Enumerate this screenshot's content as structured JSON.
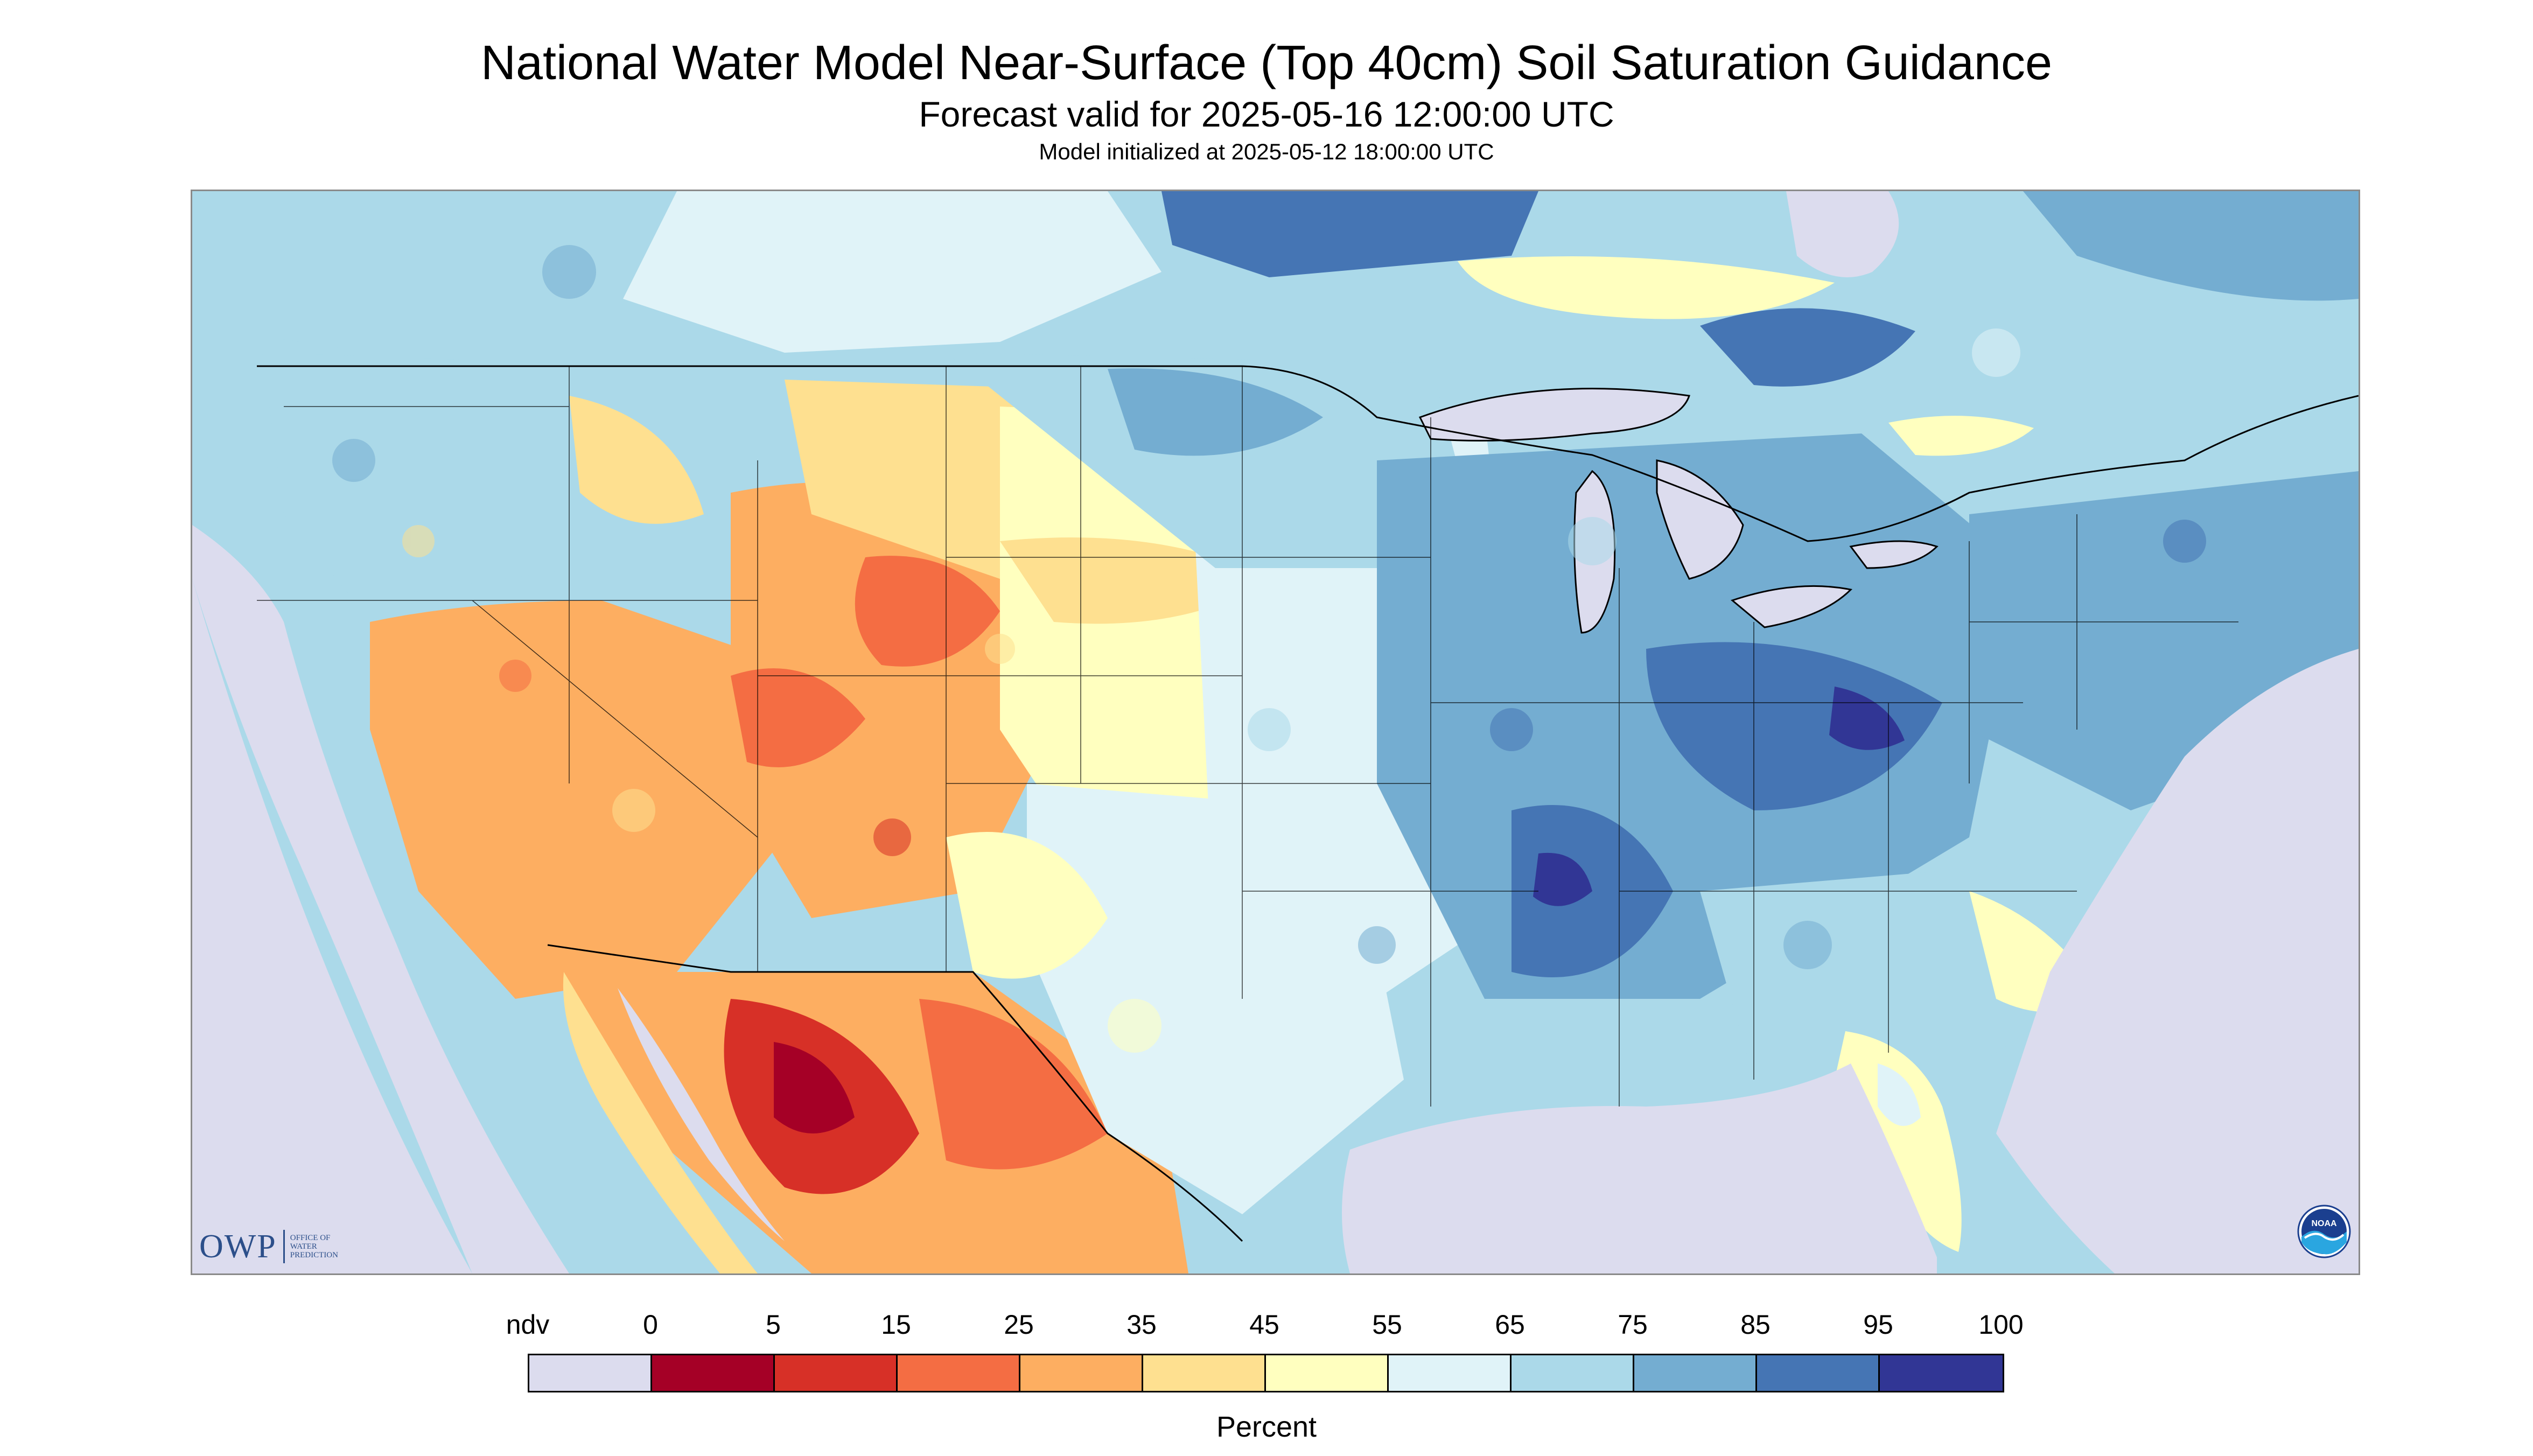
{
  "header": {
    "title": "National Water Model Near-Surface (Top 40cm) Soil Saturation Guidance",
    "subtitle": "Forecast valid for 2025-05-16 12:00:00 UTC",
    "initialized": "Model initialized at 2025-05-12 18:00:00 UTC"
  },
  "logos": {
    "owp_mark": "OWP",
    "owp_text_1": "OFFICE OF",
    "owp_text_2": "WATER",
    "owp_text_3": "PREDICTION",
    "noaa_text": "NOAA"
  },
  "legend": {
    "unit": "Percent",
    "ticks": [
      "ndv",
      "0",
      "5",
      "15",
      "25",
      "35",
      "45",
      "55",
      "65",
      "75",
      "85",
      "95",
      "100"
    ],
    "colors": [
      "#dcdcee",
      "#a50026",
      "#d73027",
      "#f46d43",
      "#fdae61",
      "#fee090",
      "#ffffbf",
      "#e0f3f8",
      "#abd9e9",
      "#74add1",
      "#4575b4",
      "#313695"
    ]
  },
  "map": {
    "colors": {
      "nodata": "#dcdcee",
      "very_dry": "#a50026",
      "dry": "#d73027",
      "mod_dry": "#f46d43",
      "orange": "#fdae61",
      "tan": "#fee090",
      "pale": "#ffffbf",
      "light": "#e0f3f8",
      "mid": "#abd9e9",
      "blue": "#74add1",
      "dark": "#4575b4",
      "deep": "#313695",
      "lake": "#dcdcee"
    }
  }
}
